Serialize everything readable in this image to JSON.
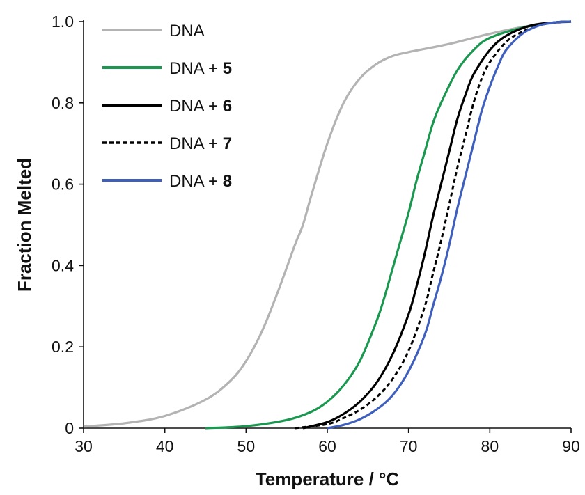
{
  "chart_data": {
    "type": "line",
    "title": "",
    "xlabel": "Temperature / °C",
    "ylabel": "Fraction Melted",
    "xlim": [
      30,
      90
    ],
    "ylim": [
      0,
      1.0
    ],
    "x_ticks": [
      "30",
      "40",
      "50",
      "60",
      "70",
      "80",
      "90"
    ],
    "y_ticks": [
      "0",
      "0.2",
      "0.4",
      "0.6",
      "0.8",
      "1.0"
    ],
    "grid": false,
    "legend_position": "top-left",
    "series": [
      {
        "name": "DNA",
        "name_base": "DNA",
        "name_bold": "",
        "color": "#b3b3b3",
        "dash": "solid",
        "x": [
          30,
          35,
          40,
          45,
          48,
          50,
          52,
          54,
          56,
          57,
          58,
          60,
          62,
          64,
          66,
          68,
          70,
          75,
          80,
          85,
          90
        ],
        "y": [
          0.004,
          0.012,
          0.03,
          0.07,
          0.115,
          0.165,
          0.24,
          0.34,
          0.45,
          0.5,
          0.57,
          0.7,
          0.8,
          0.86,
          0.895,
          0.915,
          0.925,
          0.945,
          0.97,
          0.99,
          1.0
        ]
      },
      {
        "name": "DNA + 5",
        "name_base": "DNA + ",
        "name_bold": "5",
        "color": "#1a9850",
        "dash": "solid",
        "x": [
          45,
          50,
          55,
          58,
          60,
          62,
          64,
          66,
          67,
          68,
          69,
          70,
          71,
          72,
          73,
          74,
          76,
          78,
          80,
          84,
          88,
          90
        ],
        "y": [
          0.0,
          0.005,
          0.02,
          0.04,
          0.065,
          0.105,
          0.165,
          0.26,
          0.32,
          0.39,
          0.46,
          0.53,
          0.61,
          0.68,
          0.75,
          0.8,
          0.88,
          0.93,
          0.96,
          0.985,
          0.998,
          1.0
        ]
      },
      {
        "name": "DNA + 6",
        "name_base": "DNA + ",
        "name_bold": "6",
        "color": "#000000",
        "dash": "solid",
        "x": [
          57,
          60,
          62,
          64,
          66,
          68,
          70,
          71,
          72,
          73,
          74,
          75,
          76,
          77,
          78,
          80,
          82,
          85,
          88,
          90
        ],
        "y": [
          0.0,
          0.015,
          0.035,
          0.065,
          0.11,
          0.18,
          0.28,
          0.35,
          0.43,
          0.52,
          0.6,
          0.68,
          0.76,
          0.82,
          0.87,
          0.93,
          0.965,
          0.99,
          0.998,
          1.0
        ]
      },
      {
        "name": "DNA + 7",
        "name_base": "DNA + ",
        "name_bold": "7",
        "color": "#000000",
        "dash": "dotted",
        "x": [
          56,
          60,
          62,
          64,
          66,
          68,
          70,
          72,
          73,
          74,
          75,
          76,
          77,
          78,
          79,
          80,
          82,
          84,
          86,
          88,
          90
        ],
        "y": [
          0.0,
          0.01,
          0.025,
          0.045,
          0.075,
          0.12,
          0.19,
          0.3,
          0.38,
          0.46,
          0.55,
          0.64,
          0.72,
          0.8,
          0.86,
          0.9,
          0.95,
          0.975,
          0.99,
          0.998,
          1.0
        ]
      },
      {
        "name": "DNA + 8",
        "name_base": "DNA + ",
        "name_bold": "8",
        "color": "#3f5fbf",
        "dash": "solid",
        "x": [
          60,
          62,
          64,
          66,
          68,
          70,
          72,
          73,
          74,
          75,
          76,
          77,
          78,
          79,
          80,
          81,
          82,
          84,
          86,
          88,
          90
        ],
        "y": [
          0.0,
          0.008,
          0.022,
          0.045,
          0.08,
          0.14,
          0.23,
          0.3,
          0.37,
          0.45,
          0.54,
          0.62,
          0.7,
          0.78,
          0.84,
          0.89,
          0.93,
          0.97,
          0.99,
          0.998,
          1.0
        ]
      }
    ]
  }
}
